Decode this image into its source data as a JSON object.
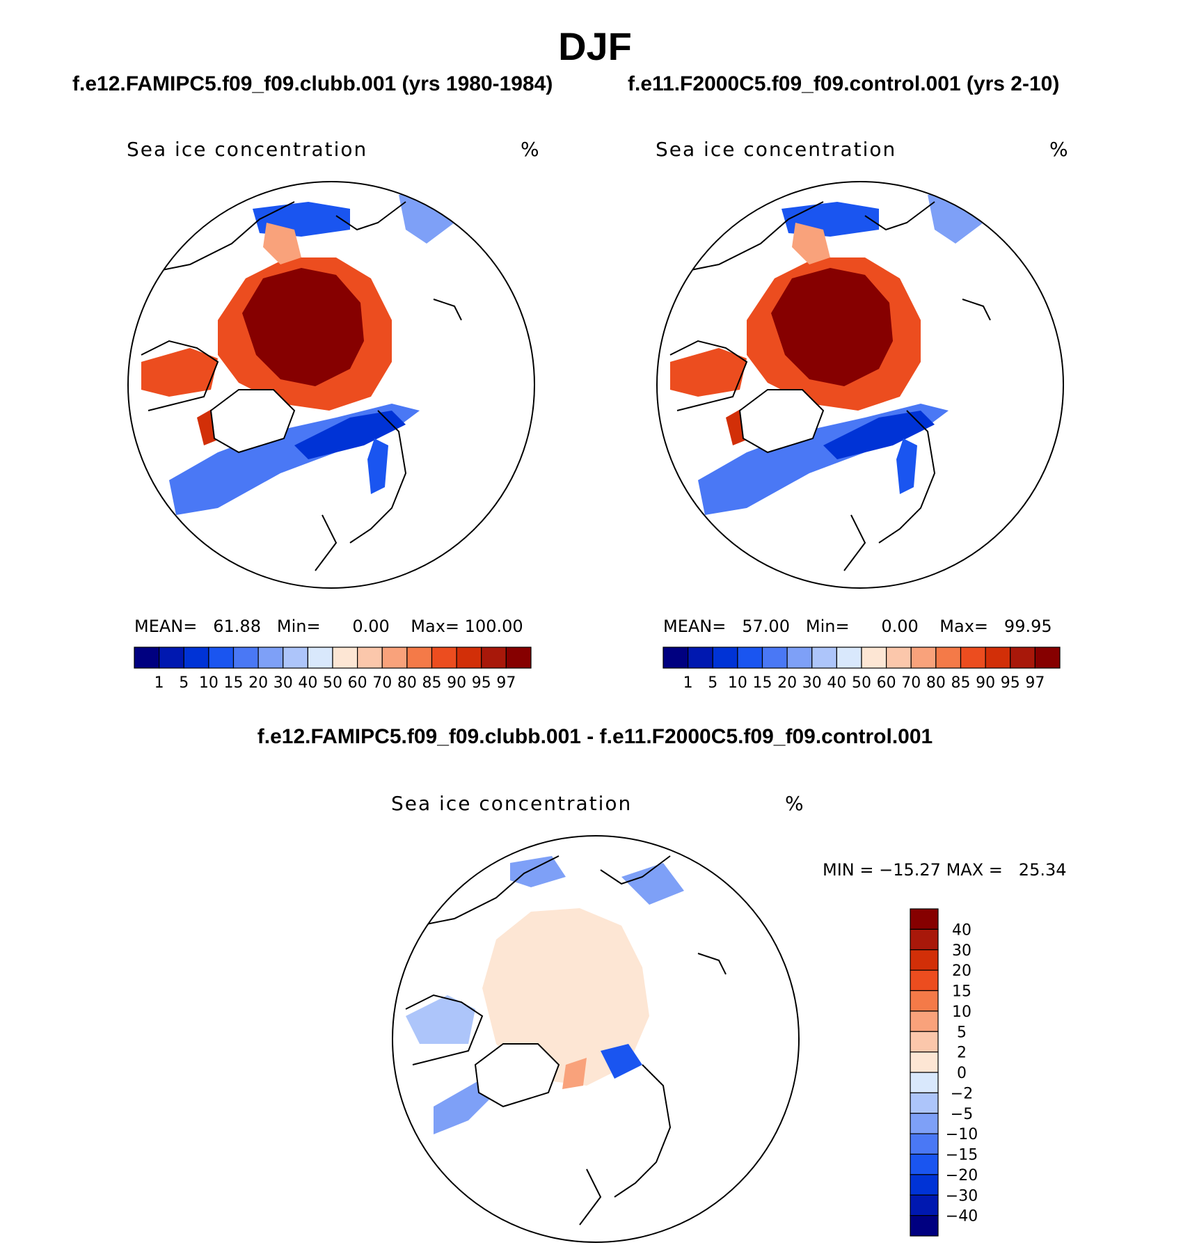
{
  "figure": {
    "title": "DJF",
    "diff_title": "f.e12.FAMIPC5.f09_f09.clubb.001 - f.e11.F2000C5.f09_f09.control.001"
  },
  "panels": [
    {
      "case_title": "f.e12.FAMIPC5.f09_f09.clubb.001 (yrs 1980-1984)",
      "variable": "Sea ice concentration",
      "units": "%",
      "mean_label": "MEAN=",
      "mean": "61.88",
      "min_label": "Min=",
      "min": "0.00",
      "max_label": "Max=",
      "max": "100.00"
    },
    {
      "case_title": "f.e11.F2000C5.f09_f09.control.001 (yrs 2-10)",
      "variable": "Sea ice concentration",
      "units": "%",
      "mean_label": "MEAN=",
      "mean": "57.00",
      "min_label": "Min=",
      "min": "0.00",
      "max_label": "Max=",
      "max": "99.95"
    },
    {
      "variable": "Sea ice concentration",
      "units": "%",
      "min_label": "MIN =",
      "min": "−15.27",
      "max_label": "MAX =",
      "max": "25.34"
    }
  ],
  "chart_data": [
    {
      "type": "heatmap",
      "projection": "north-polar-stereographic",
      "title": "Sea ice concentration",
      "units": "%",
      "stats": {
        "mean": 61.88,
        "min": 0.0,
        "max": 100.0
      },
      "colorbar": {
        "levels": [
          1,
          5,
          10,
          15,
          20,
          30,
          40,
          50,
          60,
          70,
          80,
          85,
          90,
          95,
          97
        ],
        "level_labels": [
          "1",
          "5",
          "10",
          "15",
          "20",
          "30",
          "40",
          "50",
          "60",
          "70",
          "80",
          "85",
          "90",
          "95",
          "97"
        ],
        "colors": [
          "#000080",
          "#0018b0",
          "#0033d6",
          "#1a55f0",
          "#4a78f5",
          "#7ea0f7",
          "#adc5fa",
          "#d9e8fc",
          "#fde6d4",
          "#fbc7ab",
          "#f9a27b",
          "#f47a48",
          "#ec4d1f",
          "#d22f08",
          "#a8180a",
          "#860000"
        ]
      }
    },
    {
      "type": "heatmap",
      "projection": "north-polar-stereographic",
      "title": "Sea ice concentration",
      "units": "%",
      "stats": {
        "mean": 57.0,
        "min": 0.0,
        "max": 99.95
      },
      "colorbar": {
        "levels": [
          1,
          5,
          10,
          15,
          20,
          30,
          40,
          50,
          60,
          70,
          80,
          85,
          90,
          95,
          97
        ],
        "level_labels": [
          "1",
          "5",
          "10",
          "15",
          "20",
          "30",
          "40",
          "50",
          "60",
          "70",
          "80",
          "85",
          "90",
          "95",
          "97"
        ],
        "colors": [
          "#000080",
          "#0018b0",
          "#0033d6",
          "#1a55f0",
          "#4a78f5",
          "#7ea0f7",
          "#adc5fa",
          "#d9e8fc",
          "#fde6d4",
          "#fbc7ab",
          "#f9a27b",
          "#f47a48",
          "#ec4d1f",
          "#d22f08",
          "#a8180a",
          "#860000"
        ]
      }
    },
    {
      "type": "heatmap",
      "projection": "north-polar-stereographic",
      "title": "Sea ice concentration",
      "units": "%",
      "stats": {
        "min": -15.27,
        "max": 25.34
      },
      "colorbar": {
        "levels": [
          40,
          30,
          20,
          15,
          10,
          5,
          2,
          0,
          -2,
          -5,
          -10,
          -15,
          -20,
          -30,
          -40
        ],
        "level_labels": [
          "40",
          "30",
          "20",
          "15",
          "10",
          "5",
          "2",
          "0",
          "−2",
          "−5",
          "−10",
          "−15",
          "−20",
          "−30",
          "−40"
        ],
        "colors": [
          "#860000",
          "#a8180a",
          "#d22f08",
          "#ec4d1f",
          "#f47a48",
          "#f9a27b",
          "#fbc7ab",
          "#fde6d4",
          "#d9e8fc",
          "#adc5fa",
          "#7ea0f7",
          "#4a78f5",
          "#1a55f0",
          "#0033d6",
          "#0018b0",
          "#000080"
        ]
      }
    }
  ]
}
